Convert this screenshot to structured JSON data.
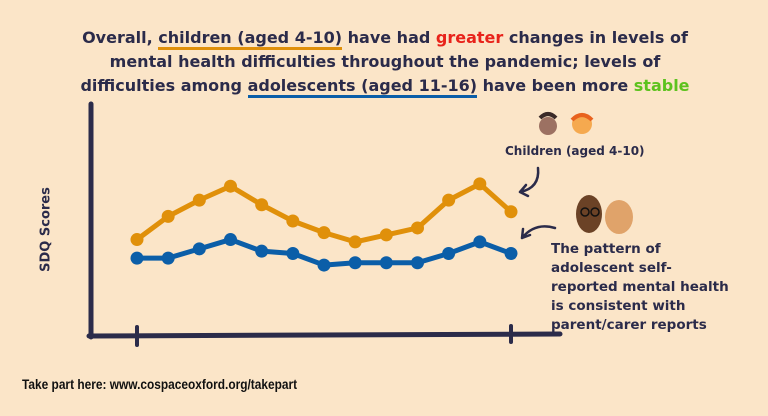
{
  "headline": {
    "p1": "Overall, ",
    "children": "children (aged 4-10)",
    "p2": " have had ",
    "greater": "greater",
    "p3": " changes in levels of mental health difficulties throughout the pandemic; levels of difficulties among ",
    "adolescents": "adolescents (aged 11-16)",
    "p4": " have been more ",
    "stable": "stable"
  },
  "colors": {
    "children": "#e0900a",
    "adolescents": "#0b5ea8",
    "greater": "#e8231b",
    "stable": "#5dc21e",
    "axis": "#2b2b4a",
    "background": "#fbe5c8"
  },
  "chart_data": {
    "type": "line",
    "ylabel": "SDQ Scores",
    "xlabel": "",
    "ylim": [
      0,
      100
    ],
    "grid": false,
    "y_ticks_shown": false,
    "series": [
      {
        "name": "Children (aged 4-10)",
        "color": "#e0900a",
        "values": [
          42,
          52,
          59,
          65,
          57,
          50,
          45,
          41,
          44,
          47,
          59,
          66,
          54
        ]
      },
      {
        "name": "The pattern of adolescent self-reported mental health is consistent with parent/carer reports",
        "color": "#0b5ea8",
        "values": [
          34,
          34,
          38,
          42,
          37,
          36,
          31,
          32,
          32,
          32,
          36,
          41,
          36
        ]
      }
    ]
  },
  "annotations": {
    "children": "Children (aged 4-10)",
    "adolescents": "The pattern of adolescent self-reported mental health is consistent with parent/carer reports"
  },
  "footer": "Take part here: www.cospaceoxford.org/takepart"
}
